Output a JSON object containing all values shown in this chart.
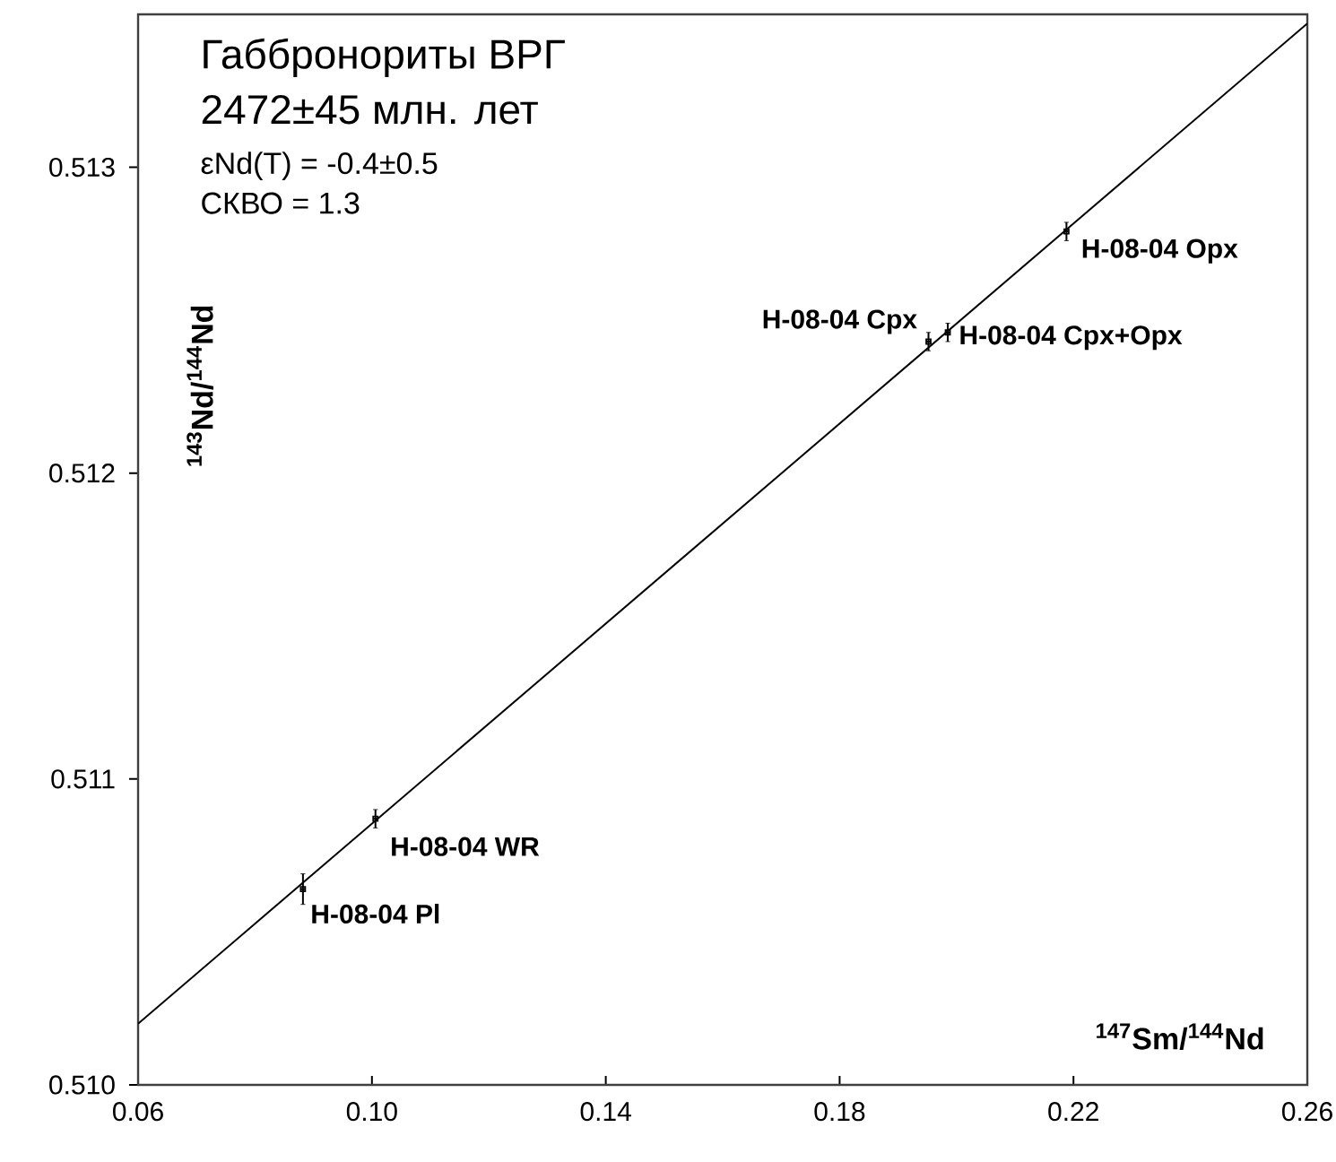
{
  "chart_data": {
    "type": "scatter",
    "title": "Габбронориты ВРГ",
    "subtitle": "2472±45 млн. лет",
    "xlabel": "**$^{147}$Sm/$^{144}$Nd**",
    "ylabel": "**$^{143}$Nd/$^{144}$Nd**",
    "xlim": [
      0.06,
      0.26
    ],
    "ylim": [
      0.51,
      0.5135
    ],
    "xticks": [
      {
        "value": 0.06,
        "label": "0.06"
      },
      {
        "value": 0.1,
        "label": "0.10"
      },
      {
        "value": 0.14,
        "label": "0.14"
      },
      {
        "value": 0.18,
        "label": "0.18"
      },
      {
        "value": 0.22,
        "label": "0.22"
      },
      {
        "value": 0.26,
        "label": "0.26"
      }
    ],
    "yticks": [
      {
        "value": 0.51,
        "label": "0.510"
      },
      {
        "value": 0.511,
        "label": "0.511"
      },
      {
        "value": 0.512,
        "label": "0.512"
      },
      {
        "value": 0.513,
        "label": "0.513"
      }
    ],
    "grid": false,
    "series": [
      {
        "color": "#000000",
        "marker": "square",
        "x": [
          0.0882,
          0.1006,
          0.1952,
          0.1985,
          0.2188
        ],
        "values": [
          0.51064,
          0.51087,
          0.51243,
          0.51246,
          0.51279
        ],
        "errors": [
          5e-05,
          3e-05,
          3e-05,
          3e-05,
          3e-05
        ],
        "xerrors": [
          0.0003,
          0.0003,
          0.0003,
          0.0003,
          0.0003
        ]
      },
      {
        "type": "line",
        "color": "#000000",
        "x": [
          0.06,
          0.26
        ],
        "values": [
          0.5102,
          0.51347
        ]
      }
    ],
    "annotations": [
      "εNd(T) = -0.4±0.5",
      "СКВО = 1.3",
      {
        "text": "H-08-04 Pl",
        "x": 0.0882,
        "y": 0.51064
      },
      {
        "text": "H-08-04  WR",
        "x": 0.1006,
        "y": 0.51087
      },
      {
        "text": "H-08-04 Cpx",
        "x": 0.1952,
        "y": 0.51243
      },
      {
        "text": "H-08-04 Cpx+Opx",
        "x": 0.1985,
        "y": 0.51246
      },
      {
        "text": "H-08-04 Opx",
        "x": 0.2188,
        "y": 0.51279
      }
    ]
  }
}
